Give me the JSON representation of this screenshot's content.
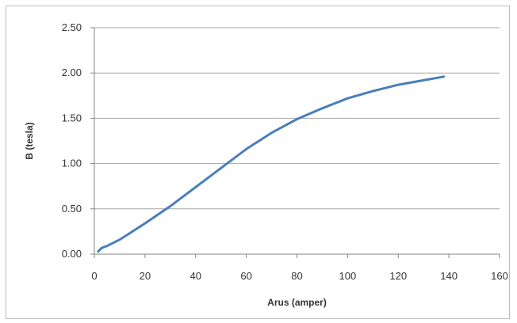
{
  "chart_data": {
    "type": "line",
    "title": "",
    "xlabel": "Arus (amper)",
    "ylabel": "B (tesla)",
    "xlim": [
      0,
      160
    ],
    "ylim": [
      0,
      2.5
    ],
    "xticks": [
      "0",
      "20",
      "40",
      "60",
      "80",
      "100",
      "120",
      "140",
      "160"
    ],
    "yticks": [
      "0.00",
      "0.50",
      "1.00",
      "1.50",
      "2.00",
      "2.50"
    ],
    "grid": "horizontal",
    "legend": "none",
    "line_color": "#4a7ebb",
    "series": [
      {
        "x": [
          1.5,
          3,
          5,
          10,
          20,
          30,
          40,
          50,
          60,
          70,
          80,
          90,
          100,
          110,
          120,
          130,
          138
        ],
        "y": [
          0.03,
          0.07,
          0.09,
          0.16,
          0.34,
          0.53,
          0.74,
          0.95,
          1.16,
          1.34,
          1.49,
          1.61,
          1.72,
          1.8,
          1.87,
          1.92,
          1.96
        ]
      }
    ]
  }
}
